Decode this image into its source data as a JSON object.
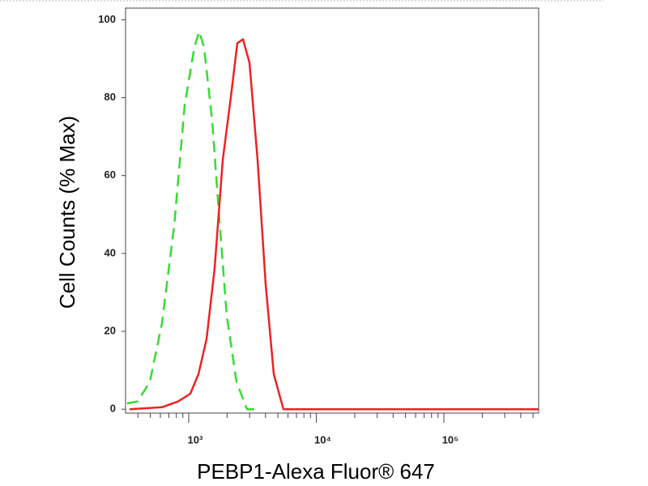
{
  "chart_data": {
    "type": "line",
    "ylabel": "Cell Counts (% Max)",
    "xlabel": "PEBP1-Alexa Fluor® 647",
    "xscale": "log",
    "xlim": [
      320,
      553000
    ],
    "ylim": [
      -1,
      103
    ],
    "xticks": [
      {
        "value": 1000,
        "label": "10³"
      },
      {
        "value": 10000,
        "label": "10⁴"
      },
      {
        "value": 100000,
        "label": "10⁵"
      }
    ],
    "xminorticks": [
      400,
      500,
      600,
      700,
      800,
      900,
      2000,
      3000,
      4000,
      5000,
      6000,
      7000,
      8000,
      9000,
      20000,
      30000,
      40000,
      50000,
      60000,
      70000,
      80000,
      90000,
      200000,
      300000,
      400000,
      500000
    ],
    "yticks": [
      0,
      20,
      40,
      60,
      80,
      100
    ],
    "grid": false,
    "series": [
      {
        "color": "#33dd33",
        "dashed": true,
        "x": [
          329,
          398,
          496,
          617,
          769,
          930,
          1108,
          1209,
          1320,
          1528,
          1718,
          1987,
          2370,
          2865,
          3567
        ],
        "values": [
          1.5,
          2,
          7,
          22,
          47,
          78,
          93,
          97,
          93,
          74,
          51,
          24,
          7,
          0,
          0
        ]
      },
      {
        "color": "#ee2222",
        "dashed": false,
        "x": [
          344,
          617,
          827,
          1030,
          1192,
          1380,
          1596,
          1848,
          2138,
          2404,
          2663,
          2994,
          3467,
          4010,
          4641,
          5530,
          23880,
          553000
        ],
        "values": [
          0,
          0.5,
          2,
          4,
          9,
          18,
          36,
          64,
          80,
          94,
          95,
          89,
          64,
          32,
          9,
          0,
          0,
          0
        ]
      }
    ]
  }
}
